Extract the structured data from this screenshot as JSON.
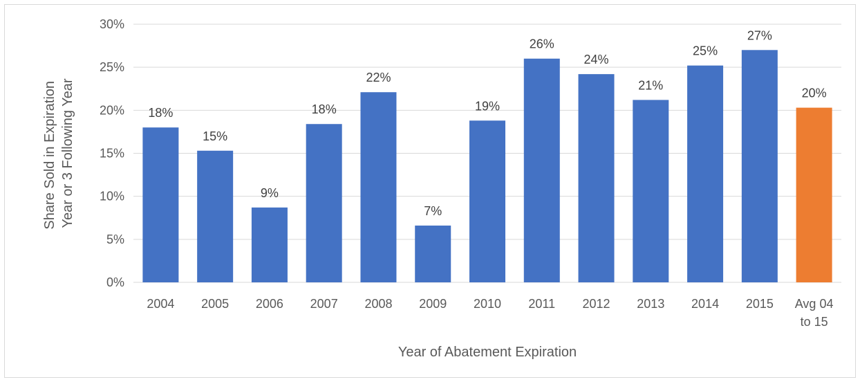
{
  "chart_data": {
    "type": "bar",
    "categories": [
      "2004",
      "2005",
      "2006",
      "2007",
      "2008",
      "2009",
      "2010",
      "2011",
      "2012",
      "2013",
      "2014",
      "2015",
      "Avg 04 to 15"
    ],
    "category_lines": [
      [
        "2004"
      ],
      [
        "2005"
      ],
      [
        "2006"
      ],
      [
        "2007"
      ],
      [
        "2008"
      ],
      [
        "2009"
      ],
      [
        "2010"
      ],
      [
        "2011"
      ],
      [
        "2012"
      ],
      [
        "2013"
      ],
      [
        "2014"
      ],
      [
        "2015"
      ],
      [
        "Avg 04",
        "to 15"
      ]
    ],
    "values": [
      18.0,
      15.3,
      8.7,
      18.4,
      22.1,
      6.6,
      18.8,
      26.0,
      24.2,
      21.2,
      25.2,
      27.0,
      20.3
    ],
    "data_labels": [
      "18%",
      "15%",
      "9%",
      "18%",
      "22%",
      "7%",
      "19%",
      "26%",
      "24%",
      "21%",
      "25%",
      "27%",
      "20%"
    ],
    "bar_colors": [
      "#4472c4",
      "#4472c4",
      "#4472c4",
      "#4472c4",
      "#4472c4",
      "#4472c4",
      "#4472c4",
      "#4472c4",
      "#4472c4",
      "#4472c4",
      "#4472c4",
      "#4472c4",
      "#ed7d31"
    ],
    "title": "",
    "xlabel": "Year of Abatement Expiration",
    "ylabel_lines": [
      "Share Sold in Expiration",
      "Year or 3 Following Year"
    ],
    "ylim": [
      0,
      30
    ],
    "yticks": [
      0,
      5,
      10,
      15,
      20,
      25,
      30
    ],
    "ytick_labels": [
      "0%",
      "5%",
      "10%",
      "15%",
      "20%",
      "25%",
      "30%"
    ],
    "grid": true,
    "colors": {
      "primary": "#4472c4",
      "highlight": "#ed7d31",
      "grid": "#d9d9d9",
      "text": "#595959"
    }
  }
}
